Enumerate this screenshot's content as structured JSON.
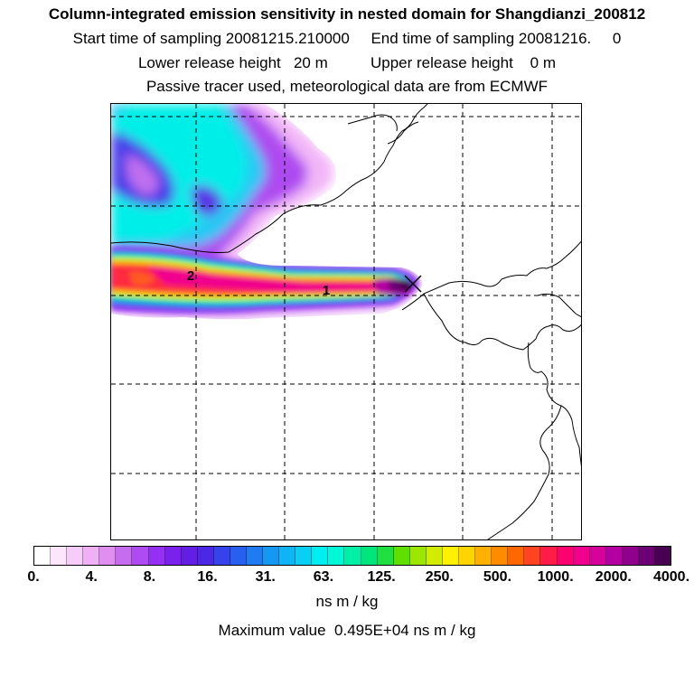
{
  "header": {
    "title": "Column-integrated emission sensitivity in nested domain for Shangdianzi_200812",
    "line2": "Start time of sampling 20081215.210000     End time of sampling 20081216.     0",
    "line3": "Lower release height   20 m          Upper release height    0 m",
    "line4": "Passive tracer used, meteorological data are from ECMWF"
  },
  "map": {
    "markers": [
      {
        "label": "1",
        "name": "point-marker-1"
      },
      {
        "label": "2",
        "name": "point-marker-2"
      }
    ],
    "release_site_icon": "x-cross-icon"
  },
  "legend": {
    "ticks": [
      "0.",
      "4.",
      "8.",
      "16.",
      "31.",
      "63.",
      "125.",
      "250.",
      "500.",
      "1000.",
      "2000.",
      "4000."
    ],
    "colors": [
      "#ffffff",
      "#fbe6fb",
      "#f6ccf8",
      "#efb0f4",
      "#e08ef0",
      "#c66cee",
      "#ad4cf0",
      "#9330f2",
      "#7a22ec",
      "#621ee4",
      "#4a28e6",
      "#3444ea",
      "#2760ee",
      "#1f7cf0",
      "#1598f2",
      "#0fb4f4",
      "#08d0f4",
      "#00eef0",
      "#00f8d6",
      "#00f0a8",
      "#00e67c",
      "#20e040",
      "#60e000",
      "#9ce600",
      "#d2ec00",
      "#fff000",
      "#ffd400",
      "#ffb000",
      "#ff8c00",
      "#ff6800",
      "#ff4420",
      "#ff1c48",
      "#ff0070",
      "#f0008c",
      "#d6009a",
      "#b400a2",
      "#90008c",
      "#6c0072",
      "#4a0050"
    ],
    "unit": "ns m / kg",
    "max_text": "Maximum value  0.495E+04 ns m / kg"
  },
  "colors": {
    "grid": "#000000",
    "coast": "#000000",
    "background": "#ffffff"
  }
}
